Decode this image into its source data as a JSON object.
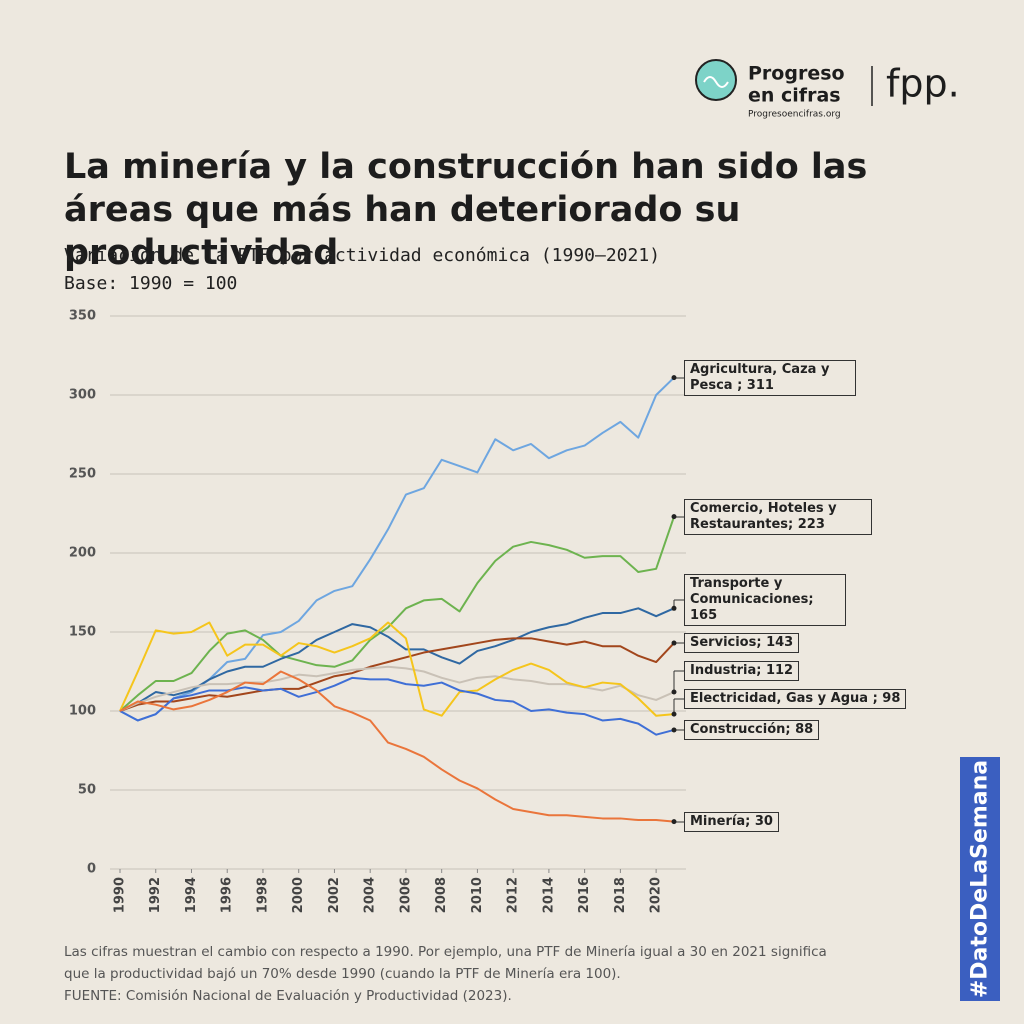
{
  "brand": {
    "line1": "Progreso",
    "line2": "en cifras",
    "url": "Progresoencifras.org",
    "partner": "fpp."
  },
  "hashtag": "#DatoDeLaSemana",
  "footnote": [
    "Las cifras muestran el cambio con respecto a 1990. Por ejemplo, una PTF de Minería igual a 30 en 2021 significa",
    "que la productividad bajó un 70% desde 1990 (cuando la PTF de Minería era 100).",
    "FUENTE: Comisión Nacional de Evaluación y Productividad (2023)."
  ],
  "chart_data": {
    "type": "line",
    "title": "La minería y la construcción han sido las áreas que más han deteriorado su productividad",
    "subtitle": [
      "Variación de la PTF por actividad económica (1990–2021)",
      "Base: 1990 = 100"
    ],
    "x": [
      1990,
      1991,
      1992,
      1993,
      1994,
      1995,
      1996,
      1997,
      1998,
      1999,
      2000,
      2001,
      2002,
      2003,
      2004,
      2005,
      2006,
      2007,
      2008,
      2009,
      2010,
      2011,
      2012,
      2013,
      2014,
      2015,
      2016,
      2017,
      2018,
      2019,
      2020,
      2021
    ],
    "xlim": [
      1990,
      2021
    ],
    "xticks": [
      1990,
      1992,
      1994,
      1996,
      1998,
      2000,
      2002,
      2004,
      2006,
      2008,
      2010,
      2012,
      2014,
      2016,
      2018,
      2020
    ],
    "ylim": [
      0,
      350
    ],
    "yticks": [
      0,
      50,
      100,
      150,
      200,
      250,
      300,
      350
    ],
    "grid": true,
    "series": [
      {
        "name": "Agricultura, Caza y Pesca ; 311",
        "color": "#6ea6e0",
        "values": [
          100,
          94,
          98,
          108,
          112,
          120,
          131,
          133,
          148,
          150,
          157,
          170,
          176,
          179,
          196,
          215,
          237,
          241,
          259,
          255,
          251,
          272,
          265,
          269,
          260,
          265,
          268,
          276,
          283,
          273,
          300,
          311
        ]
      },
      {
        "name": "Comercio, Hoteles y Restaurantes; 223",
        "color": "#6db34f",
        "values": [
          100,
          110,
          119,
          119,
          124,
          138,
          149,
          151,
          145,
          135,
          132,
          129,
          128,
          132,
          145,
          153,
          165,
          170,
          171,
          163,
          181,
          195,
          204,
          207,
          205,
          202,
          197,
          198,
          198,
          188,
          190,
          223
        ]
      },
      {
        "name": "Transporte y Comunicaciones; 165",
        "color": "#2f68a2",
        "values": [
          100,
          105,
          112,
          110,
          113,
          120,
          125,
          128,
          128,
          133,
          137,
          145,
          150,
          155,
          153,
          147,
          139,
          139,
          134,
          130,
          138,
          141,
          145,
          150,
          153,
          155,
          159,
          162,
          162,
          165,
          160,
          165
        ]
      },
      {
        "name": "Servicios; 143",
        "color": "#a2461c",
        "values": [
          100,
          104,
          106,
          106,
          108,
          110,
          109,
          111,
          113,
          114,
          114,
          118,
          122,
          124,
          128,
          131,
          134,
          137,
          139,
          141,
          143,
          145,
          146,
          146,
          144,
          142,
          144,
          141,
          141,
          135,
          131,
          143
        ]
      },
      {
        "name": "Industria; 112",
        "color": "#c9c1b6",
        "values": [
          100,
          105,
          109,
          112,
          115,
          117,
          117,
          118,
          118,
          120,
          123,
          122,
          124,
          126,
          127,
          128,
          127,
          125,
          121,
          118,
          121,
          122,
          120,
          119,
          117,
          117,
          115,
          113,
          116,
          110,
          107,
          112
        ]
      },
      {
        "name": "Electricidad, Gas y Agua ; 98",
        "color": "#f5c51c",
        "values": [
          100,
          125,
          151,
          149,
          150,
          156,
          135,
          142,
          142,
          135,
          143,
          141,
          137,
          141,
          146,
          156,
          146,
          101,
          97,
          112,
          113,
          120,
          126,
          130,
          126,
          118,
          115,
          118,
          117,
          108,
          97,
          98
        ]
      },
      {
        "name": "Construcción; 88",
        "color": "#3f6fd6",
        "values": [
          100,
          94,
          98,
          108,
          110,
          113,
          113,
          115,
          113,
          114,
          109,
          112,
          116,
          121,
          120,
          120,
          117,
          116,
          118,
          113,
          111,
          107,
          106,
          100,
          101,
          99,
          98,
          94,
          95,
          92,
          85,
          88
        ]
      },
      {
        "name": "Minería; 30",
        "color": "#ea753b",
        "values": [
          100,
          106,
          104,
          101,
          103,
          107,
          112,
          118,
          117,
          125,
          120,
          113,
          103,
          99,
          94,
          80,
          76,
          71,
          63,
          56,
          51,
          44,
          38,
          36,
          34,
          34,
          33,
          32,
          32,
          31,
          31,
          30
        ]
      }
    ]
  }
}
